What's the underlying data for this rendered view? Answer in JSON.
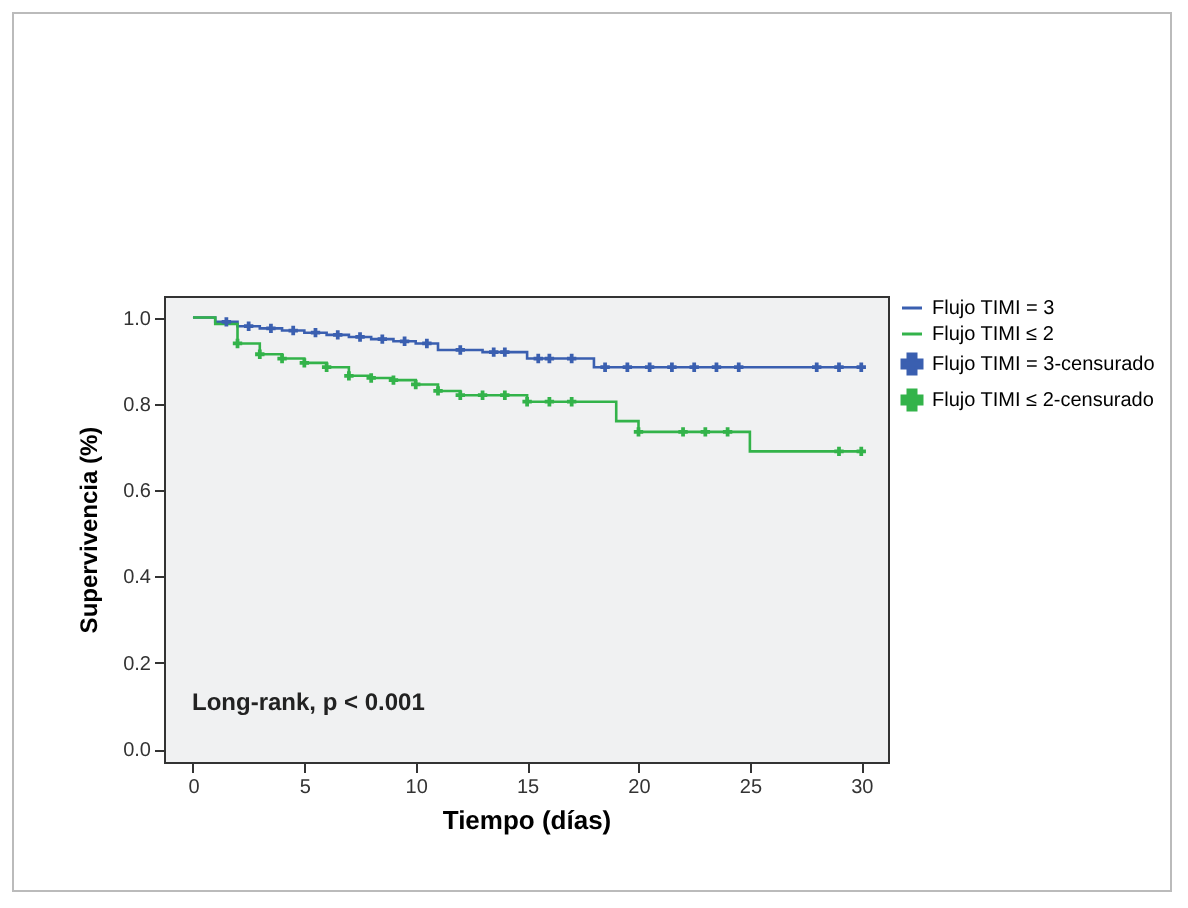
{
  "chart_data": {
    "type": "step",
    "xlabel": "Tiempo (días)",
    "ylabel": "Supervivencia (%)",
    "xlim": [
      -1.3,
      31.2
    ],
    "xticks": [
      0,
      5,
      10,
      15,
      20,
      25,
      30
    ],
    "ylim": [
      -0.03,
      1.05
    ],
    "yticks": [
      {
        "value": 0,
        "label": "0.0"
      },
      {
        "value": 0.2,
        "label": "0.2"
      },
      {
        "value": 0.4,
        "label": "0.4"
      },
      {
        "value": 0.6,
        "label": "0.6"
      },
      {
        "value": 0.8,
        "label": "0.8"
      },
      {
        "value": 1,
        "label": "1.0"
      }
    ],
    "legend": "right",
    "grid": false,
    "annotations": [
      "Long-rank, p < 0.001"
    ],
    "series": [
      {
        "name": "Flujo TIMI = 3",
        "type": "step",
        "color": "#3a5fb0",
        "x": [
          0,
          1,
          2,
          3,
          4,
          5,
          6,
          7,
          8,
          9,
          10,
          11,
          13,
          15,
          18,
          30
        ],
        "values": [
          1,
          0.99,
          0.98,
          0.975,
          0.97,
          0.965,
          0.96,
          0.955,
          0.95,
          0.945,
          0.94,
          0.925,
          0.92,
          0.905,
          0.885,
          0.885
        ]
      },
      {
        "name": "Flujo TIMI ≤ 2",
        "type": "step",
        "color": "#33b34a",
        "x": [
          0,
          1,
          2,
          3,
          4,
          5,
          6,
          7,
          8,
          9,
          10,
          11,
          12,
          15,
          19,
          20,
          25,
          30
        ],
        "values": [
          1,
          0.985,
          0.94,
          0.915,
          0.905,
          0.895,
          0.885,
          0.865,
          0.86,
          0.855,
          0.845,
          0.83,
          0.82,
          0.805,
          0.76,
          0.735,
          0.69,
          0.69
        ]
      },
      {
        "name": "Flujo TIMI = 3-censurado",
        "type": "scatter",
        "marker": "cross",
        "color": "#3a5fb0",
        "x": [
          1.5,
          2.5,
          3.5,
          4.5,
          5.5,
          6.5,
          7.5,
          8.5,
          9.5,
          10.5,
          12,
          13.5,
          14,
          15.5,
          16,
          17,
          18.5,
          19.5,
          20.5,
          21.5,
          22.5,
          23.5,
          24.5,
          28,
          29,
          30
        ],
        "values": [
          0.99,
          0.98,
          0.975,
          0.97,
          0.965,
          0.96,
          0.955,
          0.95,
          0.945,
          0.94,
          0.925,
          0.92,
          0.92,
          0.905,
          0.905,
          0.905,
          0.885,
          0.885,
          0.885,
          0.885,
          0.885,
          0.885,
          0.885,
          0.885,
          0.885,
          0.885
        ]
      },
      {
        "name": "Flujo TIMI ≤ 2-censurado",
        "type": "scatter",
        "marker": "cross",
        "color": "#33b34a",
        "x": [
          2,
          3,
          4,
          5,
          6,
          7,
          8,
          9,
          10,
          11,
          12,
          13,
          14,
          15,
          16,
          17,
          20,
          22,
          23,
          24,
          29,
          30
        ],
        "values": [
          0.94,
          0.915,
          0.905,
          0.895,
          0.885,
          0.865,
          0.86,
          0.855,
          0.845,
          0.83,
          0.82,
          0.82,
          0.82,
          0.805,
          0.805,
          0.805,
          0.735,
          0.735,
          0.735,
          0.735,
          0.69,
          0.69
        ]
      }
    ]
  }
}
